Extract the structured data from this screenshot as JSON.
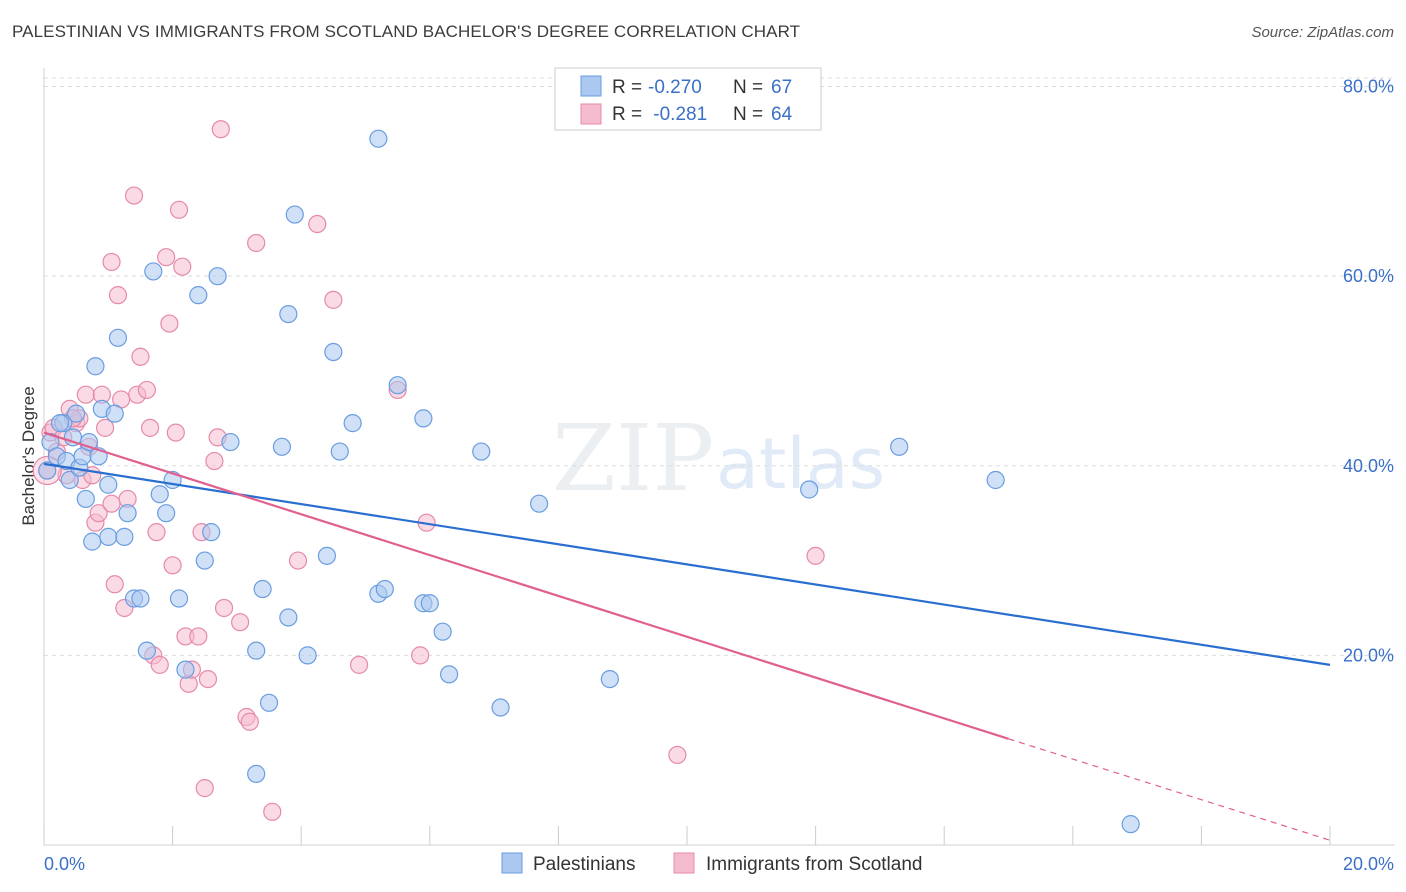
{
  "title": "PALESTINIAN VS IMMIGRANTS FROM SCOTLAND BACHELOR'S DEGREE CORRELATION CHART",
  "source": "Source: ZipAtlas.com",
  "watermark": {
    "zip": "ZIP",
    "atlas": "atlas"
  },
  "colors": {
    "blue_fill": "#aac8f0",
    "blue_stroke": "#6a9de0",
    "blue_line": "#2a6fd0",
    "pink_fill": "#f5bcd0",
    "pink_stroke": "#e58aaa",
    "pink_line": "#e06090",
    "tick_text": "#3a70c8",
    "grid": "#dddddd"
  },
  "legend": {
    "rows": [
      {
        "r_label": "R = ",
        "r_value": "-0.270",
        "n_label": "N = ",
        "n_value": "67"
      },
      {
        "r_label": "R = ",
        "r_value": " -0.281",
        "n_label": "N = ",
        "n_value": "64"
      }
    ]
  },
  "chart_data": {
    "type": "scatter",
    "xlabel": "",
    "ylabel": "Bachelor's Degree",
    "xlim": [
      0,
      20
    ],
    "ylim": [
      0,
      82
    ],
    "x_ticks": [
      "0.0%",
      "20.0%"
    ],
    "y_ticks": [
      {
        "value": 20,
        "label": "20.0%"
      },
      {
        "value": 40,
        "label": "40.0%"
      },
      {
        "value": 60,
        "label": "60.0%"
      },
      {
        "value": 80,
        "label": "80.0%"
      }
    ],
    "grid": true,
    "legend_position": "bottom",
    "series": [
      {
        "name": "Palestinians",
        "trend": {
          "x0": 0,
          "y0": 40.2,
          "x1": 20,
          "y1": 19.0
        },
        "points": [
          [
            0.05,
            39.5
          ],
          [
            0.1,
            42.5
          ],
          [
            0.2,
            41.0
          ],
          [
            0.3,
            44.5
          ],
          [
            0.35,
            40.5
          ],
          [
            0.4,
            38.5
          ],
          [
            0.45,
            43.0
          ],
          [
            0.5,
            45.5
          ],
          [
            0.55,
            39.8
          ],
          [
            0.6,
            41.0
          ],
          [
            0.65,
            36.5
          ],
          [
            0.7,
            42.5
          ],
          [
            0.75,
            32.0
          ],
          [
            0.8,
            50.5
          ],
          [
            0.85,
            41.0
          ],
          [
            0.9,
            46.0
          ],
          [
            1.0,
            38.0
          ],
          [
            1.0,
            32.5
          ],
          [
            1.1,
            45.5
          ],
          [
            1.15,
            53.5
          ],
          [
            1.25,
            32.5
          ],
          [
            1.3,
            35.0
          ],
          [
            1.4,
            26.0
          ],
          [
            1.5,
            26.0
          ],
          [
            1.6,
            20.5
          ],
          [
            1.7,
            60.5
          ],
          [
            1.8,
            37.0
          ],
          [
            1.9,
            35.0
          ],
          [
            2.0,
            38.5
          ],
          [
            2.1,
            26.0
          ],
          [
            2.2,
            18.5
          ],
          [
            2.4,
            58.0
          ],
          [
            2.5,
            30.0
          ],
          [
            2.6,
            33.0
          ],
          [
            2.7,
            60.0
          ],
          [
            2.9,
            42.5
          ],
          [
            3.3,
            20.5
          ],
          [
            3.3,
            7.5
          ],
          [
            3.4,
            27.0
          ],
          [
            3.5,
            15.0
          ],
          [
            3.7,
            42.0
          ],
          [
            3.8,
            24.0
          ],
          [
            3.8,
            56.0
          ],
          [
            3.9,
            66.5
          ],
          [
            4.1,
            20.0
          ],
          [
            4.4,
            30.5
          ],
          [
            4.5,
            52.0
          ],
          [
            4.6,
            41.5
          ],
          [
            4.8,
            44.5
          ],
          [
            5.2,
            74.5
          ],
          [
            5.2,
            26.5
          ],
          [
            5.3,
            27.0
          ],
          [
            5.5,
            48.5
          ],
          [
            5.9,
            25.5
          ],
          [
            5.9,
            45.0
          ],
          [
            6.0,
            25.5
          ],
          [
            6.2,
            22.5
          ],
          [
            6.3,
            18.0
          ],
          [
            6.8,
            41.5
          ],
          [
            7.1,
            14.5
          ],
          [
            7.7,
            36.0
          ],
          [
            8.8,
            17.5
          ],
          [
            11.9,
            37.5
          ],
          [
            13.3,
            42.0
          ],
          [
            14.8,
            38.5
          ],
          [
            16.9,
            2.2
          ],
          [
            0.25,
            44.5
          ]
        ]
      },
      {
        "name": "Immigrants from Scotland",
        "trend": {
          "x0": 0,
          "y0": 43.5,
          "x1": 15.0,
          "y1": 11.2,
          "dash_x1": 20,
          "dash_y1": 0.5
        },
        "points": [
          [
            0.05,
            39.5
          ],
          [
            0.1,
            43.5
          ],
          [
            0.15,
            44.0
          ],
          [
            0.2,
            41.5
          ],
          [
            0.3,
            43.0
          ],
          [
            0.4,
            46.0
          ],
          [
            0.5,
            44.5
          ],
          [
            0.55,
            45.0
          ],
          [
            0.6,
            38.5
          ],
          [
            0.65,
            47.5
          ],
          [
            0.7,
            42.0
          ],
          [
            0.75,
            39.0
          ],
          [
            0.8,
            34.0
          ],
          [
            0.85,
            35.0
          ],
          [
            0.9,
            47.5
          ],
          [
            0.95,
            44.0
          ],
          [
            1.05,
            61.5
          ],
          [
            1.1,
            27.5
          ],
          [
            1.15,
            58.0
          ],
          [
            1.2,
            47.0
          ],
          [
            1.25,
            25.0
          ],
          [
            1.3,
            36.5
          ],
          [
            1.4,
            68.5
          ],
          [
            1.45,
            47.5
          ],
          [
            1.5,
            51.5
          ],
          [
            1.6,
            48.0
          ],
          [
            1.65,
            44.0
          ],
          [
            1.7,
            20.0
          ],
          [
            1.75,
            33.0
          ],
          [
            1.8,
            19.0
          ],
          [
            1.9,
            62.0
          ],
          [
            1.95,
            55.0
          ],
          [
            2.0,
            29.5
          ],
          [
            2.05,
            43.5
          ],
          [
            2.1,
            67.0
          ],
          [
            2.15,
            61.0
          ],
          [
            2.2,
            22.0
          ],
          [
            2.25,
            17.0
          ],
          [
            2.3,
            18.5
          ],
          [
            2.4,
            22.0
          ],
          [
            2.5,
            6.0
          ],
          [
            2.55,
            17.5
          ],
          [
            2.65,
            40.5
          ],
          [
            2.7,
            43.0
          ],
          [
            2.75,
            75.5
          ],
          [
            2.8,
            25.0
          ],
          [
            3.05,
            23.5
          ],
          [
            3.15,
            13.5
          ],
          [
            3.2,
            13.0
          ],
          [
            3.3,
            63.5
          ],
          [
            3.55,
            3.5
          ],
          [
            3.95,
            30.0
          ],
          [
            4.25,
            65.5
          ],
          [
            4.5,
            57.5
          ],
          [
            4.9,
            19.0
          ],
          [
            5.5,
            48.0
          ],
          [
            5.85,
            20.0
          ],
          [
            5.95,
            34.0
          ],
          [
            9.85,
            9.5
          ],
          [
            12.0,
            30.5
          ],
          [
            0.35,
            39.0
          ],
          [
            0.45,
            45.0
          ],
          [
            1.05,
            36.0
          ],
          [
            2.45,
            33.0
          ]
        ]
      }
    ]
  }
}
